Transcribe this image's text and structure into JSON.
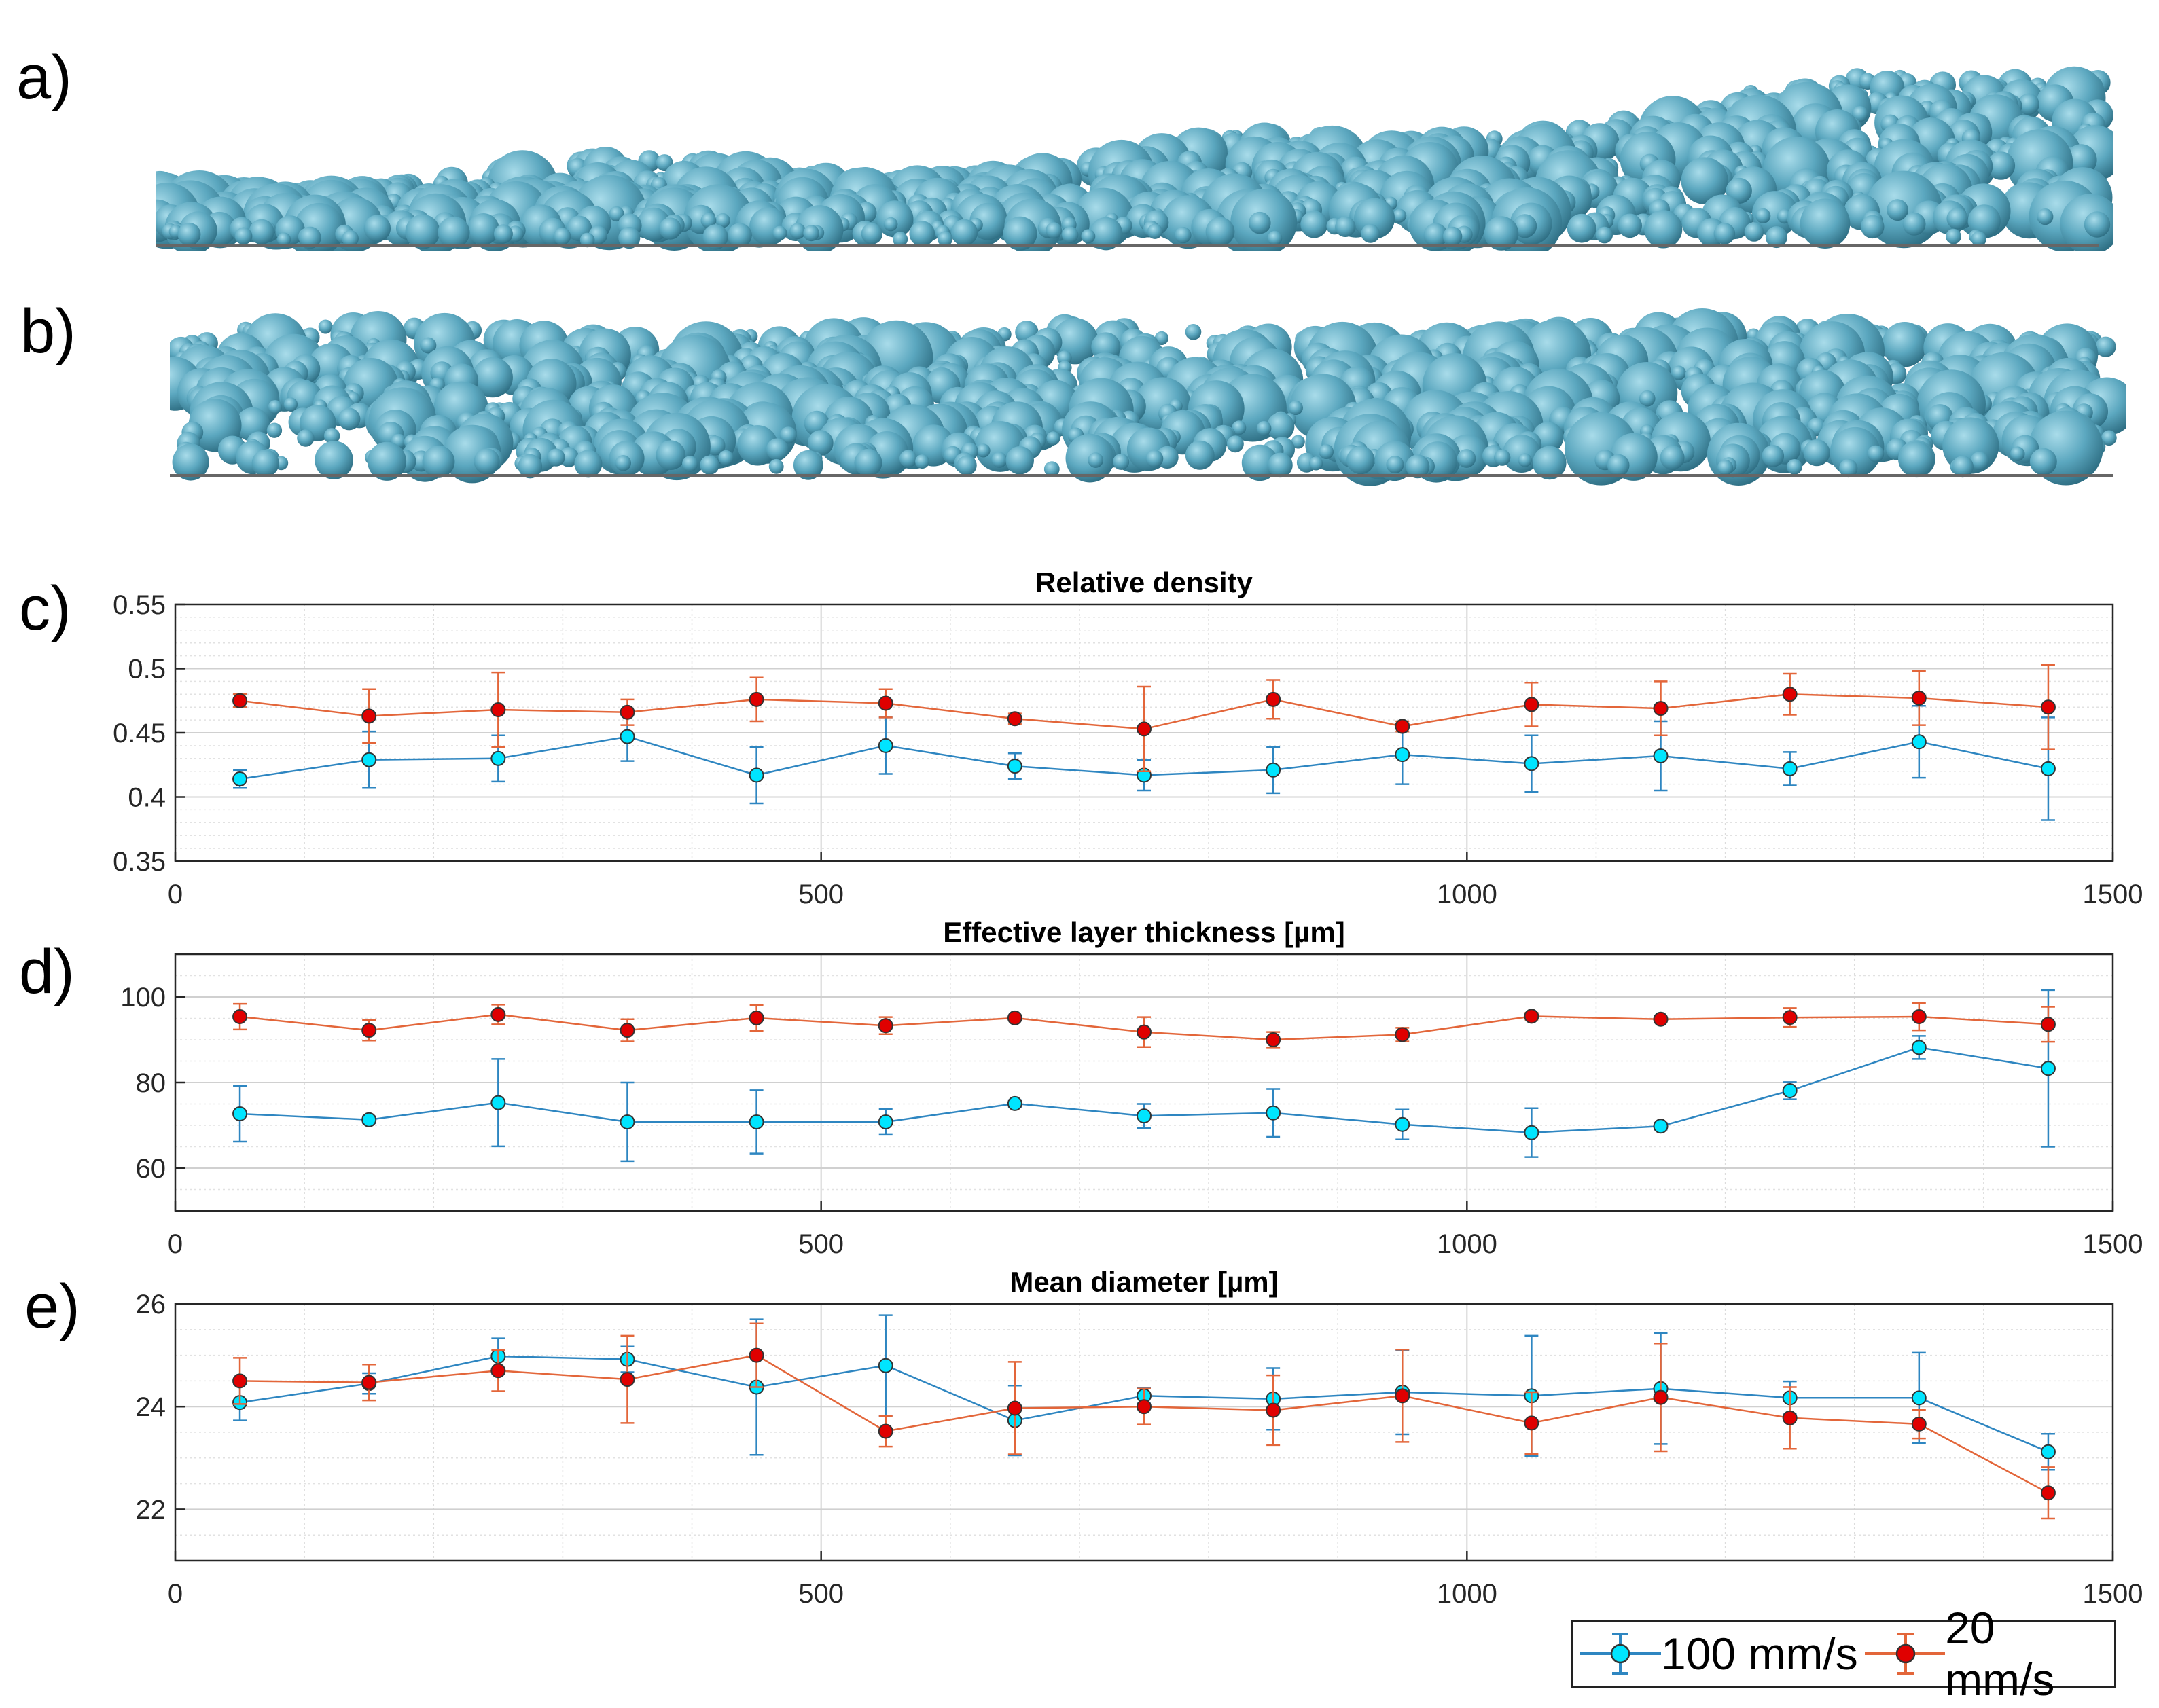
{
  "panel_labels": [
    "a)",
    "b)",
    "c)",
    "d)",
    "e)"
  ],
  "colors": {
    "blue_line": "#2E86C1",
    "blue_marker": "#00E5FF",
    "red_line": "#E3663A",
    "red_marker": "#E00000",
    "particle": "#5BA7BF",
    "particle_dark": "#2F6F84",
    "particle_light": "#A9DCEA"
  },
  "legend": {
    "items": [
      {
        "label": "100 mm/s",
        "series": "100 mm/s"
      },
      {
        "label": "20 mm/s",
        "series": "20 mm/s"
      }
    ]
  },
  "chart_data": [
    {
      "type": "line",
      "title": "Relative density",
      "xlabel": "",
      "ylabel": "",
      "xlim": [
        0,
        1500
      ],
      "ylim": [
        0.35,
        0.55
      ],
      "xticks": [
        0,
        500,
        1000,
        1500
      ],
      "xtick_labels": [
        "0",
        "500",
        "1000",
        "1500"
      ],
      "yticks": [
        0.35,
        0.4,
        0.45,
        0.5,
        0.55
      ],
      "ytick_labels": [
        "0.35",
        "0.4",
        "0.45",
        "0.5",
        "0.55"
      ],
      "grid": true,
      "x": [
        50,
        150,
        250,
        350,
        450,
        550,
        650,
        750,
        850,
        950,
        1050,
        1150,
        1250,
        1350,
        1450
      ],
      "series": [
        {
          "name": "100 mm/s",
          "values": [
            0.414,
            0.429,
            0.43,
            0.447,
            0.417,
            0.44,
            0.424,
            0.417,
            0.421,
            0.433,
            0.426,
            0.432,
            0.422,
            0.443,
            0.422
          ],
          "errors": [
            0.007,
            0.022,
            0.018,
            0.019,
            0.022,
            0.022,
            0.01,
            0.012,
            0.018,
            0.023,
            0.022,
            0.027,
            0.013,
            0.028,
            0.04
          ]
        },
        {
          "name": "20 mm/s",
          "values": [
            0.475,
            0.463,
            0.468,
            0.466,
            0.476,
            0.473,
            0.461,
            0.453,
            0.476,
            0.455,
            0.472,
            0.469,
            0.48,
            0.477,
            0.47
          ],
          "errors": [
            0.005,
            0.021,
            0.029,
            0.01,
            0.017,
            0.011,
            0.004,
            0.033,
            0.015,
            0.004,
            0.017,
            0.021,
            0.016,
            0.021,
            0.033
          ]
        }
      ]
    },
    {
      "type": "line",
      "title": "Effective layer thickness [µm]",
      "xlabel": "",
      "ylabel": "",
      "xlim": [
        0,
        1500
      ],
      "ylim": [
        50,
        110
      ],
      "xticks": [
        0,
        500,
        1000,
        1500
      ],
      "xtick_labels": [
        "0",
        "500",
        "1000",
        "1500"
      ],
      "yticks": [
        60,
        80,
        100
      ],
      "ytick_labels": [
        "60",
        "80",
        "100"
      ],
      "grid": true,
      "x": [
        50,
        150,
        250,
        350,
        450,
        550,
        650,
        750,
        850,
        950,
        1050,
        1150,
        1250,
        1350,
        1450
      ],
      "series": [
        {
          "name": "100 mm/s",
          "values": [
            72.7,
            71.3,
            75.3,
            70.8,
            70.8,
            70.8,
            75.1,
            72.2,
            72.9,
            70.2,
            68.3,
            69.8,
            78.1,
            88.2,
            83.3
          ],
          "errors": [
            6.5,
            0.8,
            10.2,
            9.2,
            7.4,
            3.0,
            0.8,
            2.8,
            5.6,
            3.5,
            5.7,
            0.8,
            2.0,
            2.7,
            18.3
          ]
        },
        {
          "name": "20 mm/s",
          "values": [
            95.4,
            92.2,
            95.9,
            92.2,
            95.1,
            93.3,
            95.1,
            91.8,
            90.0,
            91.2,
            95.5,
            94.8,
            95.2,
            95.4,
            93.6
          ],
          "errors": [
            3.0,
            2.4,
            2.3,
            2.6,
            3.0,
            2.0,
            0.6,
            3.5,
            1.8,
            1.6,
            0.8,
            0.6,
            2.2,
            3.2,
            4.1
          ]
        }
      ]
    },
    {
      "type": "line",
      "title": "Mean diameter [µm]",
      "xlabel": "",
      "ylabel": "",
      "xlim": [
        0,
        1500
      ],
      "ylim": [
        21,
        26
      ],
      "xticks": [
        0,
        500,
        1000,
        1500
      ],
      "xtick_labels": [
        "0",
        "500",
        "1000",
        "1500"
      ],
      "yticks": [
        22,
        24,
        26
      ],
      "ytick_labels": [
        "22",
        "24",
        "26"
      ],
      "grid": true,
      "x": [
        50,
        150,
        250,
        350,
        450,
        550,
        650,
        750,
        850,
        950,
        1050,
        1150,
        1250,
        1350,
        1450
      ],
      "series": [
        {
          "name": "100 mm/s",
          "values": [
            24.08,
            24.45,
            24.98,
            24.92,
            24.38,
            24.8,
            23.73,
            24.21,
            24.15,
            24.28,
            24.21,
            24.35,
            24.17,
            24.17,
            23.12
          ],
          "errors": [
            0.35,
            0.2,
            0.35,
            0.25,
            1.32,
            0.98,
            0.68,
            0.15,
            0.6,
            0.82,
            1.17,
            1.08,
            0.32,
            0.88,
            0.35
          ]
        },
        {
          "name": "20 mm/s",
          "values": [
            24.5,
            24.47,
            24.7,
            24.53,
            25.0,
            23.52,
            23.97,
            24.0,
            23.93,
            24.21,
            23.68,
            24.18,
            23.78,
            23.66,
            22.32
          ],
          "errors": [
            0.45,
            0.35,
            0.4,
            0.85,
            0.62,
            0.3,
            0.9,
            0.35,
            0.68,
            0.9,
            0.6,
            1.05,
            0.6,
            0.28,
            0.5
          ]
        }
      ]
    }
  ]
}
